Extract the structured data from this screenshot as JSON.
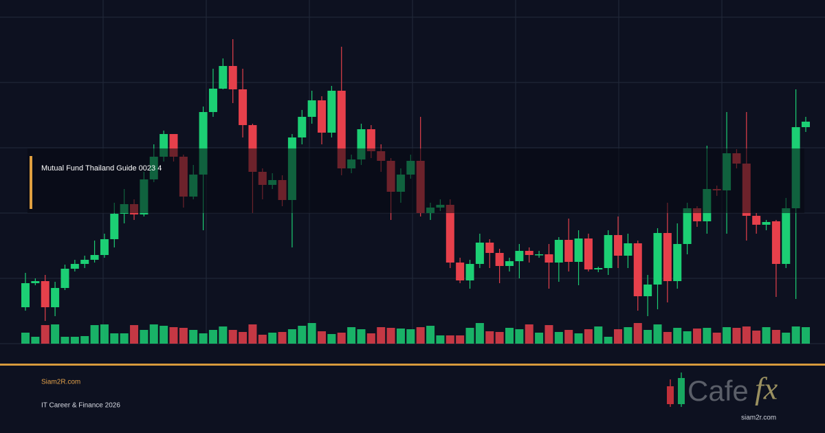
{
  "chart_data": {
    "type": "candlestick",
    "ylim": [
      0,
      500
    ],
    "up_color": "#1ccf74",
    "down_color": "#e6404b",
    "open": [
      53,
      88,
      91,
      53,
      81,
      109,
      116,
      122,
      129,
      152,
      189,
      203,
      188,
      239,
      272,
      305,
      272,
      214,
      246,
      337,
      371,
      404,
      370,
      318,
      250,
      231,
      238,
      209,
      300,
      330,
      354,
      307,
      368,
      255,
      268,
      312,
      280,
      266,
      221,
      246,
      266,
      190,
      198,
      202,
      118,
      92,
      116,
      147,
      132,
      113,
      120,
      135,
      129,
      130,
      118,
      151,
      119,
      153,
      108,
      110,
      158,
      128,
      146,
      69,
      86,
      161,
      91,
      145,
      197,
      178,
      225,
      223,
      277,
      262,
      186,
      173,
      178,
      116,
      197,
      315
    ],
    "high": [
      103,
      95,
      100,
      90,
      115,
      122,
      128,
      150,
      160,
      205,
      225,
      210,
      250,
      290,
      310,
      305,
      275,
      260,
      345,
      400,
      415,
      443,
      400,
      320,
      255,
      248,
      245,
      305,
      340,
      368,
      360,
      375,
      432,
      275,
      320,
      318,
      290,
      270,
      255,
      275,
      330,
      205,
      210,
      210,
      125,
      122,
      160,
      152,
      138,
      125,
      145,
      140,
      135,
      145,
      155,
      182,
      165,
      160,
      112,
      165,
      185,
      160,
      150,
      100,
      168,
      205,
      175,
      205,
      200,
      288,
      230,
      337,
      283,
      337,
      190,
      180,
      180,
      212,
      370,
      330
    ],
    "low": [
      48,
      85,
      33,
      40,
      78,
      105,
      110,
      118,
      125,
      140,
      175,
      180,
      185,
      235,
      265,
      265,
      198,
      210,
      165,
      330,
      370,
      350,
      300,
      190,
      210,
      225,
      200,
      140,
      290,
      320,
      290,
      300,
      245,
      248,
      260,
      270,
      250,
      180,
      205,
      240,
      185,
      180,
      193,
      110,
      88,
      80,
      110,
      110,
      88,
      105,
      95,
      118,
      125,
      80,
      90,
      105,
      85,
      105,
      104,
      100,
      110,
      110,
      48,
      40,
      50,
      60,
      80,
      130,
      170,
      160,
      215,
      160,
      255,
      150,
      160,
      165,
      68,
      110,
      65,
      308
    ],
    "close": [
      88,
      91,
      53,
      81,
      109,
      116,
      122,
      129,
      152,
      189,
      203,
      188,
      239,
      272,
      305,
      272,
      214,
      246,
      337,
      371,
      404,
      370,
      318,
      250,
      231,
      238,
      209,
      300,
      330,
      354,
      307,
      368,
      255,
      268,
      312,
      280,
      266,
      221,
      246,
      266,
      190,
      198,
      202,
      118,
      92,
      116,
      147,
      132,
      113,
      120,
      135,
      129,
      130,
      118,
      151,
      119,
      153,
      108,
      110,
      158,
      128,
      146,
      69,
      86,
      161,
      91,
      145,
      197,
      178,
      225,
      223,
      277,
      262,
      186,
      173,
      177,
      116,
      197,
      315,
      323
    ],
    "volume": [
      16,
      10,
      27,
      28,
      10,
      10,
      11,
      27,
      28,
      15,
      15,
      27,
      20,
      28,
      26,
      24,
      23,
      20,
      15,
      20,
      25,
      20,
      17,
      28,
      13,
      16,
      17,
      21,
      26,
      30,
      18,
      14,
      16,
      24,
      21,
      15,
      24,
      23,
      22,
      21,
      24,
      26,
      12,
      12,
      12,
      23,
      30,
      18,
      17,
      23,
      21,
      28,
      16,
      27,
      17,
      20,
      15,
      21,
      25,
      10,
      21,
      24,
      30,
      20,
      28,
      17,
      23,
      18,
      22,
      23,
      16,
      24,
      23,
      25,
      19,
      24,
      20,
      16,
      25,
      24
    ]
  },
  "overlay": {
    "title": "Mutual Fund Thailand Guide 0023 4"
  },
  "footer": {
    "site": "Siam2R.com",
    "tagline": "IT Career & Finance 2026"
  },
  "logo": {
    "name": "Cafe",
    "accent": "fx",
    "url": "siam2r.com"
  }
}
